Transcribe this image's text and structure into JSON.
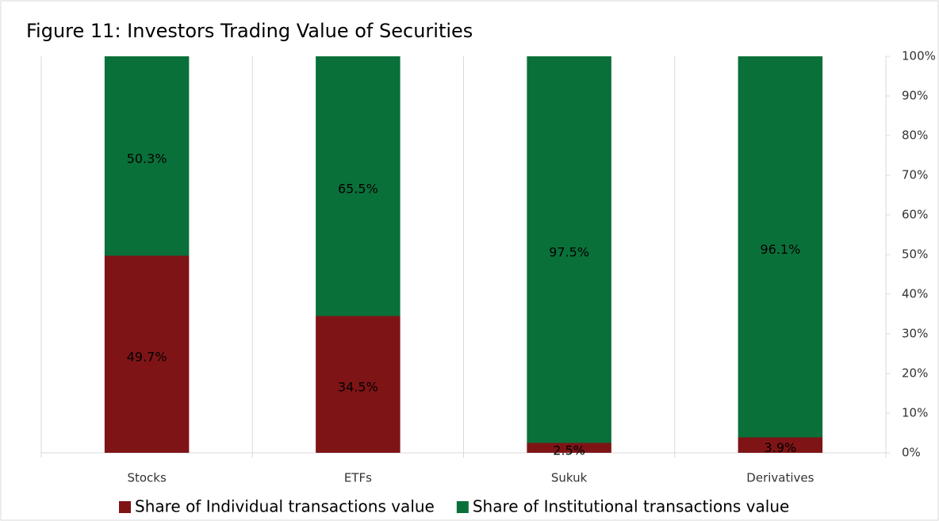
{
  "chart_data": {
    "type": "stacked_bar",
    "title": "Figure 11: Investors Trading Value of Securities",
    "categories": [
      "Stocks",
      "ETFs",
      "Sukuk",
      "Derivatives"
    ],
    "series": [
      {
        "name": "Share of Individual transactions value",
        "color": "#7f1416",
        "values": [
          49.7,
          34.5,
          2.5,
          3.9
        ],
        "value_labels": [
          "49.7%",
          "34.5%",
          "2.5%",
          "3.9%"
        ]
      },
      {
        "name": "Share of Institutional transactions value",
        "color": "#0a703a",
        "values": [
          50.3,
          65.5,
          97.5,
          96.1
        ],
        "value_labels": [
          "50.3%",
          "65.5%",
          "97.5%",
          "96.1%"
        ]
      }
    ],
    "ylim": [
      0,
      100
    ],
    "yticks": [
      {
        "value": 0,
        "label": "0%"
      },
      {
        "value": 10,
        "label": "10%"
      },
      {
        "value": 20,
        "label": "20%"
      },
      {
        "value": 30,
        "label": "30%"
      },
      {
        "value": 40,
        "label": "40%"
      },
      {
        "value": 50,
        "label": "50%"
      },
      {
        "value": 60,
        "label": "60%"
      },
      {
        "value": 70,
        "label": "70%"
      },
      {
        "value": 80,
        "label": "80%"
      },
      {
        "value": 90,
        "label": "90%"
      },
      {
        "value": 100,
        "label": "100%"
      }
    ],
    "y_axis_side": "right",
    "legend": "bottom"
  }
}
